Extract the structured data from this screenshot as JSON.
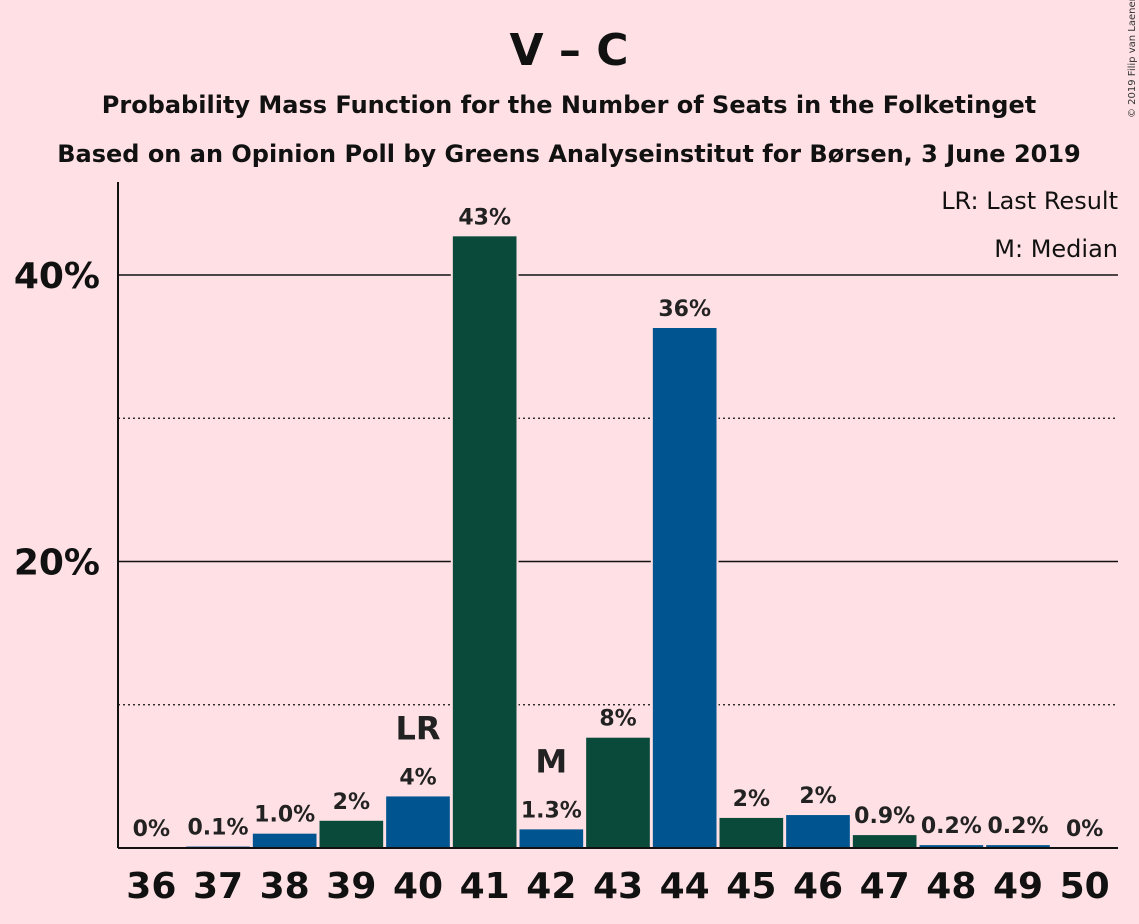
{
  "chart_data": {
    "type": "bar",
    "title": "V – C",
    "subtitle": "Probability Mass Function for the Number of Seats in the Folketinget",
    "subtitle2": "Based on an Opinion Poll by Greens Analyseinstitut for Børsen, 3 June 2019",
    "copyright": "© 2019 Filip van Laenen",
    "legend": [
      "LR: Last Result",
      "M: Median"
    ],
    "categories": [
      "36",
      "37",
      "38",
      "39",
      "40",
      "41",
      "42",
      "43",
      "44",
      "45",
      "46",
      "47",
      "48",
      "49",
      "50"
    ],
    "values": [
      0,
      0.1,
      1.0,
      1.9,
      3.6,
      42.7,
      1.3,
      7.7,
      36.3,
      2.1,
      2.3,
      0.9,
      0.2,
      0.2,
      0
    ],
    "labels": [
      "0%",
      "0.1%",
      "1.0%",
      "2%",
      "4%",
      "43%",
      "1.3%",
      "8%",
      "36%",
      "2%",
      "2%",
      "0.9%",
      "0.2%",
      "0.2%",
      "0%"
    ],
    "bar_colors": [
      "#0a4a3a",
      "#00548f",
      "#00548f",
      "#0a4a3a",
      "#00548f",
      "#0a4a3a",
      "#00548f",
      "#0a4a3a",
      "#00548f",
      "#0a4a3a",
      "#00548f",
      "#0a4a3a",
      "#00548f",
      "#00548f",
      "#0a4a3a"
    ],
    "markers": [
      {
        "category": "40",
        "text": "LR"
      },
      {
        "category": "42",
        "text": "M"
      }
    ],
    "yticks": [
      "20%",
      "40%"
    ],
    "ytick_values": [
      20,
      40
    ],
    "minor_grid": [
      10,
      30
    ],
    "ylim": [
      0,
      46.5
    ],
    "grid": true,
    "legend_position": "top-right"
  }
}
